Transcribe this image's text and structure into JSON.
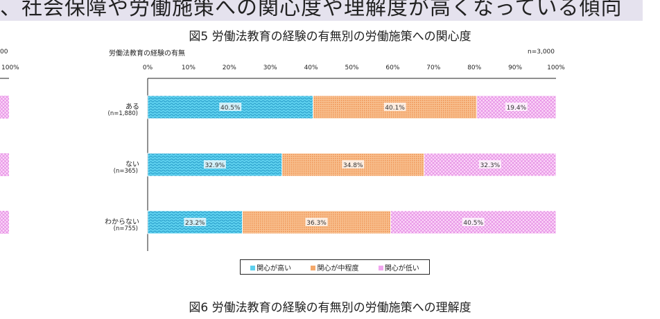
{
  "header": {
    "text": "、社会保障や労働施策への関心度や理解度が高くなっている傾向"
  },
  "left_partial": {
    "n_label": "00",
    "tick_label": "100%"
  },
  "chart_data": {
    "type": "bar",
    "orientation": "horizontal-stacked-100",
    "title": "図5  労働法教育の経験の有無別の労働施策への関心度",
    "ylabel": "労働法教育の経験の有無",
    "sample_note": "n=3,000",
    "xlim": [
      0,
      100
    ],
    "xticks": [
      "0%",
      "10%",
      "20%",
      "30%",
      "40%",
      "50%",
      "60%",
      "70%",
      "80%",
      "90%",
      "100%"
    ],
    "categories": [
      {
        "label": "ある",
        "n": "(n=1,880)"
      },
      {
        "label": "ない",
        "n": "(n=365)"
      },
      {
        "label": "わからない",
        "n": "(n=755)"
      }
    ],
    "series": [
      {
        "name": "関心が高い",
        "color": "#3fc3e6",
        "values": [
          40.5,
          32.9,
          23.2
        ]
      },
      {
        "name": "関心が中程度",
        "color": "#f5a86a",
        "values": [
          40.1,
          34.8,
          36.3
        ]
      },
      {
        "name": "関心が低い",
        "color": "#f2a6f0",
        "values": [
          19.4,
          32.3,
          40.5
        ]
      }
    ],
    "legend_position": "bottom"
  },
  "next_figure": {
    "title": "図6  労働法教育の経験の有無別の労働施策への理解度"
  }
}
